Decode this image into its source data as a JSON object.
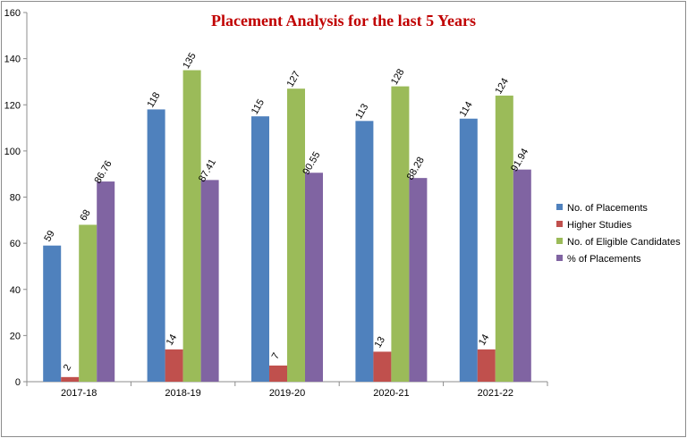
{
  "chart_data": {
    "type": "bar",
    "title": "Placement Analysis for the last 5 Years",
    "title_color": "#C00000",
    "categories": [
      "2017-18",
      "2018-19",
      "2019-20",
      "2020-21",
      "2021-22"
    ],
    "series": [
      {
        "name": "No. of Placements",
        "color": "#4F81BD",
        "values": [
          59,
          118,
          115,
          113,
          114
        ],
        "labels": [
          "59",
          "118",
          "115",
          "113",
          "114"
        ]
      },
      {
        "name": "Higher Studies",
        "color": "#C0504D",
        "values": [
          2,
          14,
          7,
          13,
          14
        ],
        "labels": [
          "2",
          "14",
          "7",
          "13",
          "14"
        ]
      },
      {
        "name": "No. of Eligible Candidates",
        "color": "#9BBB59",
        "values": [
          68,
          135,
          127,
          128,
          124
        ],
        "labels": [
          "68",
          "135",
          "127",
          "128",
          "124"
        ]
      },
      {
        "name": "% of Placements",
        "color": "#8064A2",
        "values": [
          86.76,
          87.41,
          90.55,
          88.28,
          91.94
        ],
        "labels": [
          "86.76",
          "87.41",
          "90.55",
          "88.28",
          "91.94"
        ]
      }
    ],
    "ylim": [
      0,
      160
    ],
    "yticks": [
      "0",
      "20",
      "40",
      "60",
      "80",
      "100",
      "120",
      "140",
      "160"
    ],
    "grid": false,
    "legend_position": "right"
  }
}
